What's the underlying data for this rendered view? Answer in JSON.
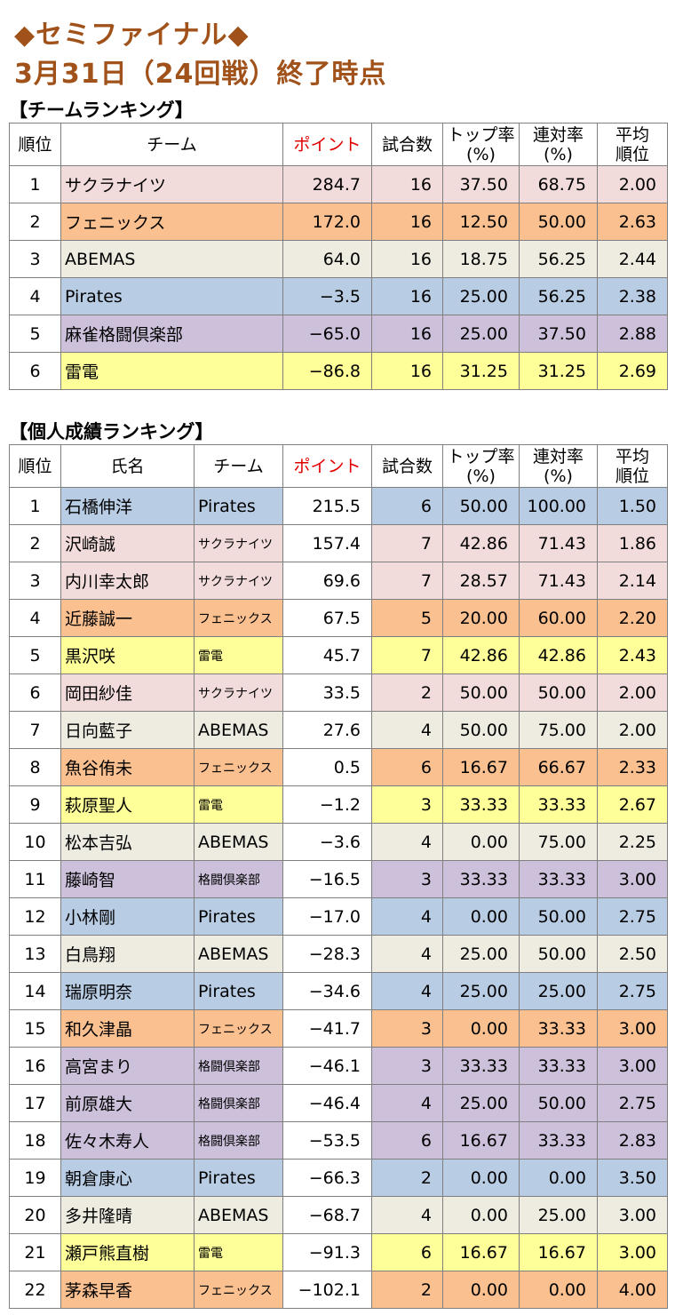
{
  "title_line1": "◆セミファイナル◆",
  "title_line2": "3月31日（24回戦）終了時点",
  "team_section_title": "【チームランキング】",
  "player_section_title": "【個人成績ランキング】",
  "team_colors": {
    "サクラナイツ": "#f2dcdb",
    "フェニックス": "#fac090",
    "ABEMAS": "#eeece1",
    "Pirates": "#b8cce4",
    "麻雀格闘倶楽部": "#ccc0da",
    "格闘倶楽部": "#ccc0da",
    "雷電": "#ffff99"
  },
  "team_table": {
    "headers": [
      "順位",
      "チーム",
      "ポイント",
      "試合数",
      "トップ率\n(%)",
      "連対率\n(%)",
      "平均\n順位"
    ],
    "rows": [
      {
        "rank": "1",
        "team": "サクラナイツ",
        "points": "284.7",
        "games": "16",
        "top": "37.50",
        "rentai": "68.75",
        "avg": "2.00"
      },
      {
        "rank": "2",
        "team": "フェニックス",
        "points": "172.0",
        "games": "16",
        "top": "12.50",
        "rentai": "50.00",
        "avg": "2.63"
      },
      {
        "rank": "3",
        "team": "ABEMAS",
        "points": "64.0",
        "games": "16",
        "top": "18.75",
        "rentai": "56.25",
        "avg": "2.44"
      },
      {
        "rank": "4",
        "team": "Pirates",
        "points": "−3.5",
        "games": "16",
        "top": "25.00",
        "rentai": "56.25",
        "avg": "2.38"
      },
      {
        "rank": "5",
        "team": "麻雀格闘倶楽部",
        "points": "−65.0",
        "games": "16",
        "top": "25.00",
        "rentai": "37.50",
        "avg": "2.88"
      },
      {
        "rank": "6",
        "team": "雷電",
        "points": "−86.8",
        "games": "16",
        "top": "31.25",
        "rentai": "31.25",
        "avg": "2.69"
      }
    ]
  },
  "player_table": {
    "headers": [
      "順位",
      "氏名",
      "チーム",
      "ポイント",
      "試合数",
      "トップ率\n(%)",
      "連対率\n(%)",
      "平均\n順位"
    ],
    "rows": [
      {
        "rank": "1",
        "name": "石橋伸洋",
        "team": "Pirates",
        "points": "215.5",
        "games": "6",
        "top": "50.00",
        "rentai": "100.00",
        "avg": "1.50"
      },
      {
        "rank": "2",
        "name": "沢崎誠",
        "team": "サクラナイツ",
        "points": "157.4",
        "games": "7",
        "top": "42.86",
        "rentai": "71.43",
        "avg": "1.86"
      },
      {
        "rank": "3",
        "name": "内川幸太郎",
        "team": "サクラナイツ",
        "points": "69.6",
        "games": "7",
        "top": "28.57",
        "rentai": "71.43",
        "avg": "2.14"
      },
      {
        "rank": "4",
        "name": "近藤誠一",
        "team": "フェニックス",
        "points": "67.5",
        "games": "5",
        "top": "20.00",
        "rentai": "60.00",
        "avg": "2.20"
      },
      {
        "rank": "5",
        "name": "黒沢咲",
        "team": "雷電",
        "points": "45.7",
        "games": "7",
        "top": "42.86",
        "rentai": "42.86",
        "avg": "2.43"
      },
      {
        "rank": "6",
        "name": "岡田紗佳",
        "team": "サクラナイツ",
        "points": "33.5",
        "games": "2",
        "top": "50.00",
        "rentai": "50.00",
        "avg": "2.00"
      },
      {
        "rank": "7",
        "name": "日向藍子",
        "team": "ABEMAS",
        "points": "27.6",
        "games": "4",
        "top": "50.00",
        "rentai": "75.00",
        "avg": "2.00"
      },
      {
        "rank": "8",
        "name": "魚谷侑未",
        "team": "フェニックス",
        "points": "0.5",
        "games": "6",
        "top": "16.67",
        "rentai": "66.67",
        "avg": "2.33"
      },
      {
        "rank": "9",
        "name": "萩原聖人",
        "team": "雷電",
        "points": "−1.2",
        "games": "3",
        "top": "33.33",
        "rentai": "33.33",
        "avg": "2.67"
      },
      {
        "rank": "10",
        "name": "松本吉弘",
        "team": "ABEMAS",
        "points": "−3.6",
        "games": "4",
        "top": "0.00",
        "rentai": "75.00",
        "avg": "2.25"
      },
      {
        "rank": "11",
        "name": "藤崎智",
        "team": "格闘倶楽部",
        "points": "−16.5",
        "games": "3",
        "top": "33.33",
        "rentai": "33.33",
        "avg": "3.00"
      },
      {
        "rank": "12",
        "name": "小林剛",
        "team": "Pirates",
        "points": "−17.0",
        "games": "4",
        "top": "0.00",
        "rentai": "50.00",
        "avg": "2.75"
      },
      {
        "rank": "13",
        "name": "白鳥翔",
        "team": "ABEMAS",
        "points": "−28.3",
        "games": "4",
        "top": "25.00",
        "rentai": "50.00",
        "avg": "2.50"
      },
      {
        "rank": "14",
        "name": "瑞原明奈",
        "team": "Pirates",
        "points": "−34.6",
        "games": "4",
        "top": "25.00",
        "rentai": "25.00",
        "avg": "2.75"
      },
      {
        "rank": "15",
        "name": "和久津晶",
        "team": "フェニックス",
        "points": "−41.7",
        "games": "3",
        "top": "0.00",
        "rentai": "33.33",
        "avg": "3.00"
      },
      {
        "rank": "16",
        "name": "高宮まり",
        "team": "格闘倶楽部",
        "points": "−46.1",
        "games": "3",
        "top": "33.33",
        "rentai": "33.33",
        "avg": "3.00"
      },
      {
        "rank": "17",
        "name": "前原雄大",
        "team": "格闘倶楽部",
        "points": "−46.4",
        "games": "4",
        "top": "25.00",
        "rentai": "50.00",
        "avg": "2.75"
      },
      {
        "rank": "18",
        "name": "佐々木寿人",
        "team": "格闘倶楽部",
        "points": "−53.5",
        "games": "6",
        "top": "16.67",
        "rentai": "33.33",
        "avg": "2.83"
      },
      {
        "rank": "19",
        "name": "朝倉康心",
        "team": "Pirates",
        "points": "−66.3",
        "games": "2",
        "top": "0.00",
        "rentai": "0.00",
        "avg": "3.50"
      },
      {
        "rank": "20",
        "name": "多井隆晴",
        "team": "ABEMAS",
        "points": "−68.7",
        "games": "4",
        "top": "0.00",
        "rentai": "25.00",
        "avg": "3.00"
      },
      {
        "rank": "21",
        "name": "瀬戸熊直樹",
        "team": "雷電",
        "points": "−91.3",
        "games": "6",
        "top": "16.67",
        "rentai": "16.67",
        "avg": "3.00"
      },
      {
        "rank": "22",
        "name": "茅森早香",
        "team": "フェニックス",
        "points": "−102.1",
        "games": "2",
        "top": "0.00",
        "rentai": "0.00",
        "avg": "4.00"
      }
    ]
  }
}
